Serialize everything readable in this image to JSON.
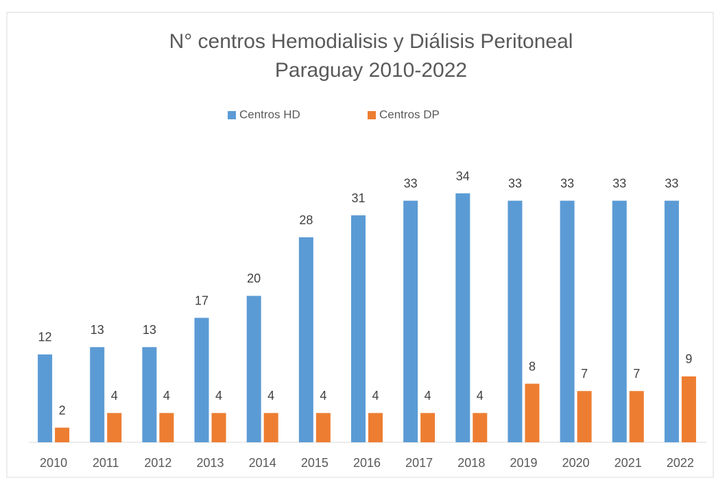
{
  "chart_data": {
    "type": "bar",
    "title": [
      "N° centros Hemodialisis y Diálisis Peritoneal",
      "Paraguay 2010-2022"
    ],
    "categories": [
      "2010",
      "2011",
      "2012",
      "2013",
      "2014",
      "2015",
      "2016",
      "2017",
      "2018",
      "2019",
      "2020",
      "2021",
      "2022"
    ],
    "series": [
      {
        "name": "Centros HD",
        "color": "#5b9bd5",
        "values": [
          12,
          13,
          13,
          17,
          20,
          28,
          31,
          33,
          34,
          33,
          33,
          33,
          33
        ]
      },
      {
        "name": "Centros DP",
        "color": "#ed7d31",
        "values": [
          2,
          4,
          4,
          4,
          4,
          4,
          4,
          4,
          4,
          8,
          7,
          7,
          9
        ]
      }
    ],
    "legend": "top"
  }
}
